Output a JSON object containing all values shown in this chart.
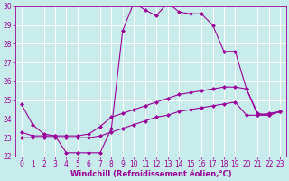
{
  "xlabel": "Windchill (Refroidissement éolien,°C)",
  "ylabel": "",
  "bg_color": "#c8ecec",
  "grid_color": "#ffffff",
  "line_color": "#990099",
  "xlim": [
    0,
    23
  ],
  "ylim": [
    22,
    30
  ],
  "xticks": [
    0,
    1,
    2,
    3,
    4,
    5,
    6,
    7,
    8,
    9,
    10,
    11,
    12,
    13,
    14,
    15,
    16,
    17,
    18,
    19,
    20,
    21,
    22,
    23
  ],
  "yticks": [
    22,
    23,
    24,
    25,
    26,
    27,
    28,
    29,
    30
  ],
  "series1_x": [
    0,
    1,
    2,
    3,
    4,
    5,
    6,
    7,
    8,
    9,
    10,
    11,
    12,
    13,
    14,
    15,
    16,
    17,
    18,
    19,
    20,
    21,
    22,
    23
  ],
  "series1_y": [
    24.8,
    23.7,
    23.2,
    23.1,
    22.2,
    22.2,
    22.2,
    22.2,
    23.5,
    28.7,
    30.2,
    29.8,
    29.5,
    30.2,
    29.7,
    29.6,
    29.6,
    29.0,
    27.6,
    27.6,
    25.6,
    24.3,
    24.2,
    24.4
  ],
  "series2_x": [
    0,
    1,
    2,
    3,
    4,
    5,
    6,
    7,
    8,
    9,
    10,
    11,
    12,
    13,
    14,
    15,
    16,
    17,
    18,
    19,
    20,
    21,
    22,
    23
  ],
  "series2_y": [
    23.3,
    23.1,
    23.1,
    23.1,
    23.1,
    23.1,
    23.2,
    23.6,
    24.1,
    24.3,
    24.5,
    24.7,
    24.9,
    25.1,
    25.3,
    25.4,
    25.5,
    25.6,
    25.7,
    25.7,
    25.6,
    24.2,
    24.2,
    24.4
  ],
  "series3_x": [
    0,
    1,
    2,
    3,
    4,
    5,
    6,
    7,
    8,
    9,
    10,
    11,
    12,
    13,
    14,
    15,
    16,
    17,
    18,
    19,
    20,
    21,
    22,
    23
  ],
  "series3_y": [
    23.0,
    23.0,
    23.0,
    23.0,
    23.0,
    23.0,
    23.0,
    23.1,
    23.3,
    23.5,
    23.7,
    23.9,
    24.1,
    24.2,
    24.4,
    24.5,
    24.6,
    24.7,
    24.8,
    24.9,
    24.2,
    24.2,
    24.3,
    24.4
  ],
  "marker": "D",
  "marker_size": 2.0,
  "line_width": 0.8,
  "tick_fontsize": 5.5,
  "label_fontsize": 6.0
}
